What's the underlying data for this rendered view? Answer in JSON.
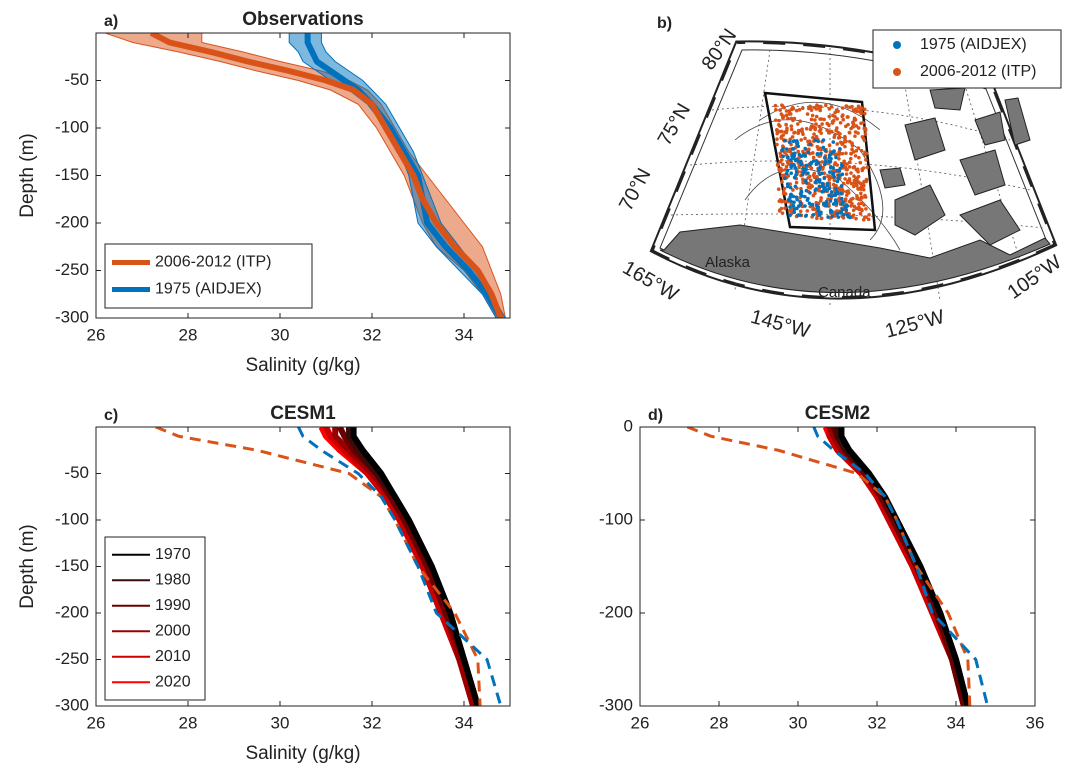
{
  "chart_data": [
    {
      "type": "line",
      "panel_label": "a)",
      "title": "Observations",
      "xlabel": "Salinity (g/kg)",
      "ylabel": "Depth (m)",
      "xlim": [
        26,
        35
      ],
      "ylim": [
        -300,
        0
      ],
      "xticks": [
        26,
        28,
        30,
        32,
        34
      ],
      "yticks": [
        -300,
        -250,
        -200,
        -150,
        -100,
        -50
      ],
      "legend": "lower left",
      "band_opacity": 0.5,
      "depth": [
        0,
        -10,
        -20,
        -30,
        -40,
        -50,
        -60,
        -75,
        -100,
        -125,
        -150,
        -175,
        -200,
        -225,
        -250,
        -275,
        -300
      ],
      "series": [
        {
          "name": "2006-2012 (ITP)",
          "color": "#d95319",
          "values": [
            27.2,
            27.6,
            28.5,
            29.3,
            30.2,
            31.0,
            31.6,
            32.0,
            32.3,
            32.6,
            32.9,
            33.1,
            33.4,
            33.8,
            34.3,
            34.6,
            34.8
          ],
          "lower": [
            26.2,
            26.8,
            27.8,
            28.7,
            29.5,
            30.4,
            31.1,
            31.7,
            32.1,
            32.4,
            32.7,
            32.9,
            33.1,
            33.4,
            34.0,
            34.4,
            34.7
          ],
          "upper": [
            28.3,
            28.3,
            29.2,
            30.0,
            30.9,
            31.5,
            31.9,
            32.2,
            32.5,
            32.8,
            33.2,
            33.6,
            34.0,
            34.4,
            34.6,
            34.8,
            34.9
          ]
        },
        {
          "name": "1975 (AIDJEX)",
          "color": "#0072bd",
          "values": [
            30.6,
            30.6,
            30.7,
            30.8,
            31.1,
            31.4,
            31.7,
            32.0,
            32.4,
            32.7,
            33.0,
            33.1,
            33.2,
            33.6,
            34.1,
            34.5,
            34.8
          ],
          "lower": [
            30.2,
            30.2,
            30.4,
            30.5,
            30.8,
            31.1,
            31.5,
            31.9,
            32.3,
            32.6,
            32.8,
            32.9,
            33.0,
            33.4,
            33.9,
            34.4,
            34.7
          ],
          "upper": [
            30.9,
            30.9,
            31.0,
            31.2,
            31.5,
            31.8,
            32.0,
            32.3,
            32.6,
            32.9,
            33.1,
            33.3,
            33.5,
            33.9,
            34.3,
            34.6,
            34.9
          ]
        }
      ]
    },
    {
      "type": "map",
      "panel_label": "b)",
      "legend": "upper right",
      "series": [
        {
          "name": "1975 (AIDJEX)",
          "color": "#0072bd"
        },
        {
          "name": "2006-2012 (ITP)",
          "color": "#d95319"
        }
      ],
      "lat_labels": [
        "80°N",
        "75°N",
        "70°N"
      ],
      "lon_labels": [
        "165°W",
        "145°W",
        "125°W",
        "105°W"
      ],
      "place_labels": [
        "Alaska",
        "Canada"
      ]
    },
    {
      "type": "line",
      "panel_label": "c)",
      "title": "CESM1",
      "xlabel": "Salinity (g/kg)",
      "ylabel": "Depth (m)",
      "xlim": [
        26,
        35
      ],
      "ylim": [
        -300,
        0
      ],
      "xticks": [
        26,
        28,
        30,
        32,
        34
      ],
      "yticks": [
        -300,
        -250,
        -200,
        -150,
        -100,
        -50
      ],
      "legend": "left",
      "depth": [
        0,
        -10,
        -25,
        -50,
        -75,
        -100,
        -150,
        -200,
        -250,
        -300
      ],
      "series": [
        {
          "name": "1970",
          "color": "#000000",
          "values": [
            31.6,
            31.6,
            31.8,
            32.2,
            32.5,
            32.8,
            33.3,
            33.7,
            34.0,
            34.3
          ]
        },
        {
          "name": "1980",
          "color": "#3b0a0a",
          "values": [
            31.5,
            31.5,
            31.7,
            32.1,
            32.5,
            32.8,
            33.3,
            33.7,
            34.0,
            34.3
          ]
        },
        {
          "name": "1990",
          "color": "#6a0000",
          "values": [
            31.3,
            31.4,
            31.6,
            32.1,
            32.4,
            32.7,
            33.2,
            33.6,
            34.0,
            34.3
          ]
        },
        {
          "name": "2000",
          "color": "#9a0000",
          "values": [
            31.2,
            31.2,
            31.5,
            32.0,
            32.4,
            32.7,
            33.2,
            33.6,
            33.9,
            34.2
          ]
        },
        {
          "name": "2010",
          "color": "#cc0000",
          "values": [
            31.0,
            31.1,
            31.4,
            31.9,
            32.3,
            32.6,
            33.1,
            33.5,
            33.9,
            34.2
          ]
        },
        {
          "name": "2020",
          "color": "#ff0000",
          "values": [
            30.9,
            31.0,
            31.3,
            31.9,
            32.3,
            32.6,
            33.1,
            33.5,
            33.9,
            34.2
          ]
        },
        {
          "color": "#d95319",
          "dashed": true,
          "values": [
            27.3,
            27.8,
            29.5,
            31.5,
            32.2,
            32.5,
            33.0,
            33.8,
            34.3,
            34.35
          ]
        },
        {
          "color": "#0072bd",
          "dashed": true,
          "values": [
            30.4,
            30.5,
            30.9,
            31.7,
            32.2,
            32.5,
            33.0,
            33.4,
            34.5,
            34.8
          ]
        }
      ]
    },
    {
      "type": "line",
      "panel_label": "d)",
      "title": "CESM2",
      "xlim": [
        26,
        36
      ],
      "ylim": [
        -300,
        0
      ],
      "xticks": [
        26,
        28,
        30,
        32,
        34,
        36
      ],
      "yticks": [
        -300,
        -200,
        -100,
        0
      ],
      "depth": [
        0,
        -10,
        -25,
        -50,
        -75,
        -100,
        -150,
        -200,
        -250,
        -300
      ],
      "series": [
        {
          "color": "#000000",
          "values": [
            31.1,
            31.1,
            31.3,
            31.8,
            32.2,
            32.5,
            33.1,
            33.6,
            34.0,
            34.3
          ]
        },
        {
          "color": "#3b0a0a",
          "values": [
            31.0,
            31.0,
            31.2,
            31.8,
            32.2,
            32.5,
            33.1,
            33.6,
            34.0,
            34.3
          ]
        },
        {
          "color": "#6a0000",
          "values": [
            30.9,
            31.0,
            31.2,
            31.7,
            32.1,
            32.4,
            33.0,
            33.5,
            33.9,
            34.2
          ]
        },
        {
          "color": "#9a0000",
          "values": [
            30.8,
            30.9,
            31.1,
            31.7,
            32.1,
            32.4,
            33.0,
            33.5,
            33.9,
            34.2
          ]
        },
        {
          "color": "#cc0000",
          "values": [
            30.8,
            30.8,
            31.0,
            31.6,
            32.0,
            32.3,
            32.9,
            33.4,
            33.9,
            34.2
          ]
        },
        {
          "color": "#ff0000",
          "values": [
            30.7,
            30.8,
            31.0,
            31.6,
            32.0,
            32.3,
            32.9,
            33.4,
            33.9,
            34.2
          ]
        },
        {
          "color": "#d95319",
          "dashed": true,
          "values": [
            27.2,
            27.8,
            29.5,
            31.5,
            32.2,
            32.5,
            33.0,
            33.8,
            34.3,
            34.35
          ]
        },
        {
          "color": "#0072bd",
          "dashed": true,
          "values": [
            30.4,
            30.5,
            30.9,
            31.7,
            32.2,
            32.5,
            33.0,
            33.4,
            34.5,
            34.8
          ]
        }
      ]
    }
  ]
}
